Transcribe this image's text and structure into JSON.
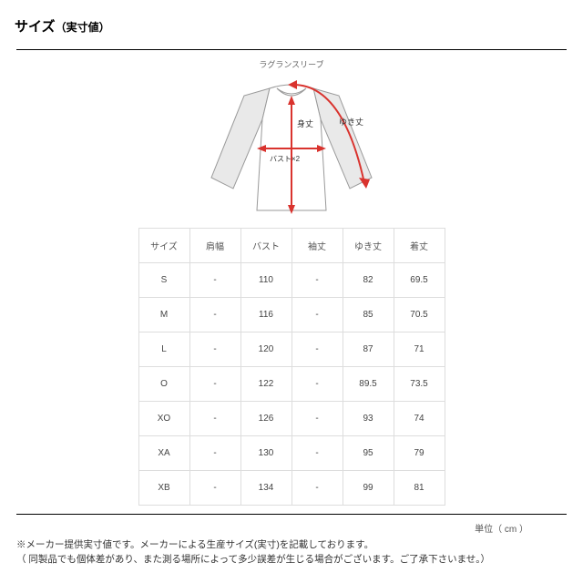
{
  "title_main": "サイズ",
  "title_sub": "（実寸値）",
  "diagram_label": "ラグランスリーブ",
  "diagram": {
    "label_mitake": "身丈",
    "label_yuki": "ゆき丈",
    "label_bust": "バスト×2",
    "arrow_color": "#d9332e",
    "shirt_outline_color": "#999999",
    "sleeve_fill": "#e9e9e9",
    "shirt_stroke_width": 1
  },
  "table": {
    "columns": [
      "サイズ",
      "肩幅",
      "バスト",
      "袖丈",
      "ゆき丈",
      "着丈"
    ],
    "rows": [
      [
        "S",
        "-",
        "110",
        "-",
        "82",
        "69.5"
      ],
      [
        "M",
        "-",
        "116",
        "-",
        "85",
        "70.5"
      ],
      [
        "L",
        "-",
        "120",
        "-",
        "87",
        "71"
      ],
      [
        "O",
        "-",
        "122",
        "-",
        "89.5",
        "73.5"
      ],
      [
        "XO",
        "-",
        "126",
        "-",
        "93",
        "74"
      ],
      [
        "XA",
        "-",
        "130",
        "-",
        "95",
        "79"
      ],
      [
        "XB",
        "-",
        "134",
        "-",
        "99",
        "81"
      ]
    ],
    "border_color": "#dddddd",
    "text_color": "#444444",
    "fontsize": 10
  },
  "unit_label": "単位（ cm ）",
  "footnote_line1": "※メーカー提供実寸値です。メーカーによる生産サイズ(実寸)を記載しております。",
  "footnote_line2": "（ 同製品でも個体差があり、また測る場所によって多少誤差が生じる場合がございます。ご了承下さいませ。）",
  "rule_color": "#000000"
}
